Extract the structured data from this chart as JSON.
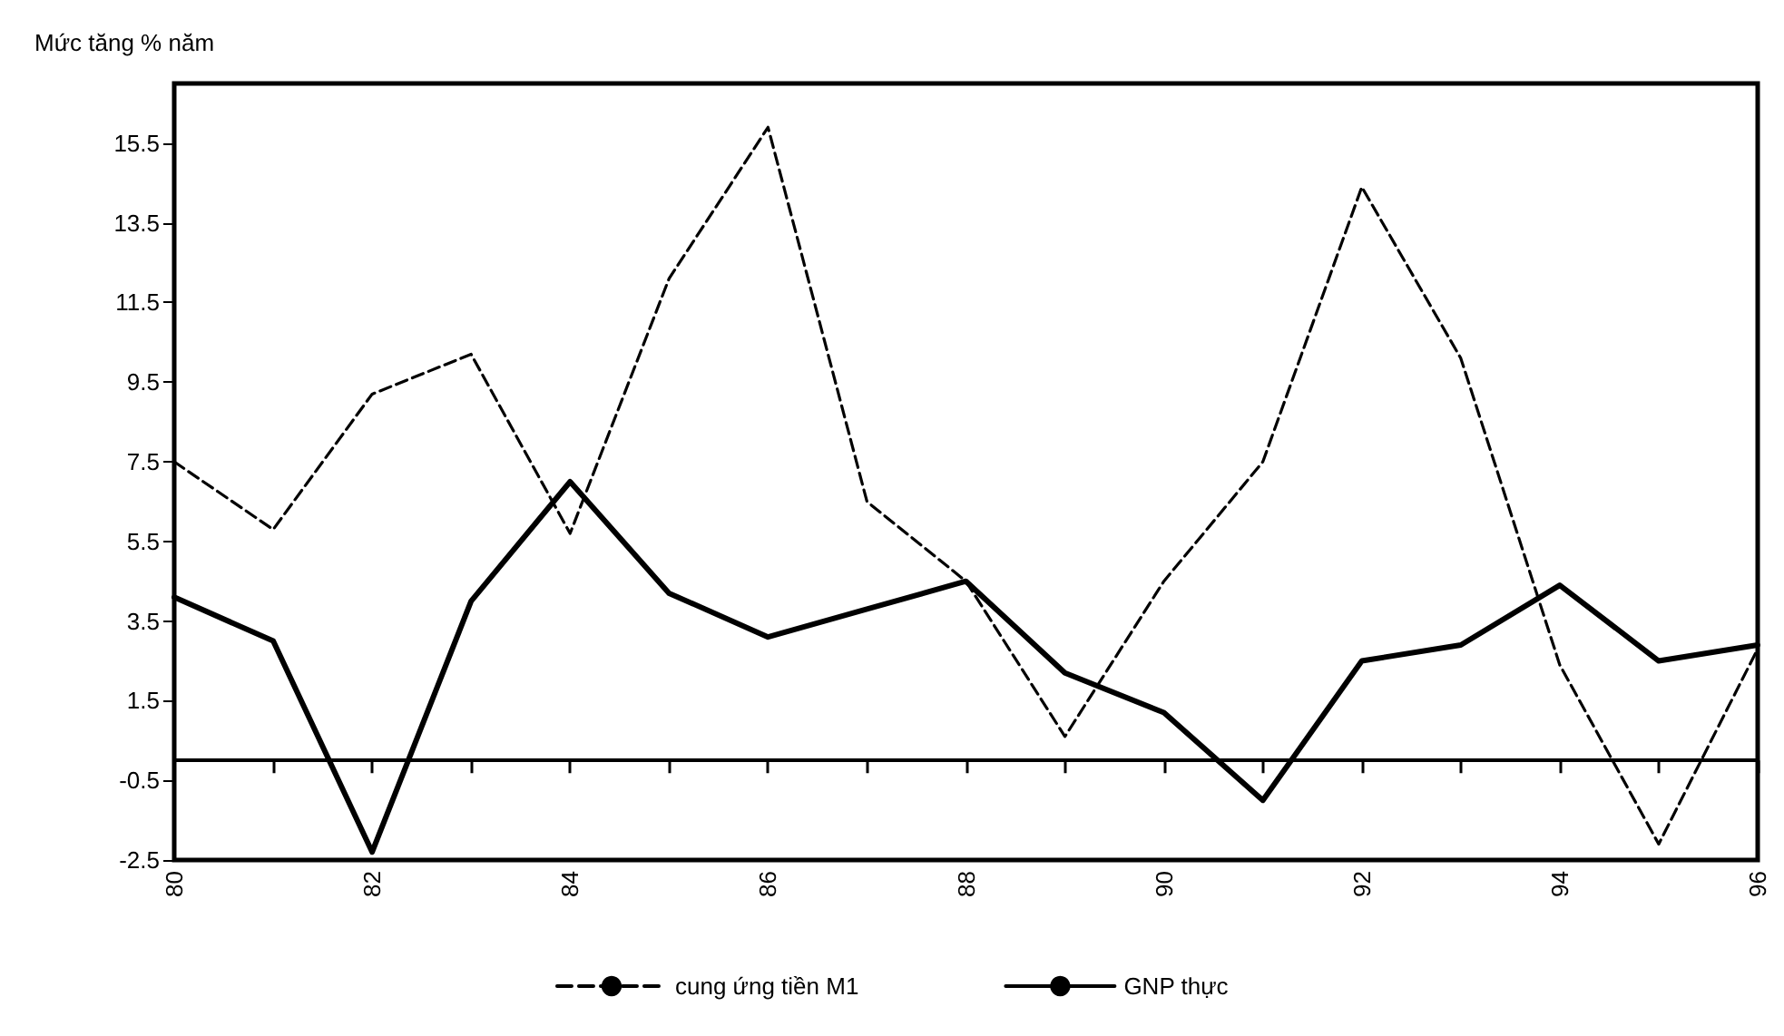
{
  "chart_data": {
    "type": "line",
    "ylabel": "Mức tăng % năm",
    "x": [
      80,
      81,
      82,
      83,
      84,
      85,
      86,
      87,
      88,
      89,
      90,
      91,
      92,
      93,
      94,
      95,
      96
    ],
    "series": [
      {
        "name": "cung ứng tiền M1",
        "color": "#000000",
        "line_style": "dashed",
        "values": [
          7.5,
          5.8,
          9.2,
          10.2,
          5.7,
          12.1,
          15.9,
          6.5,
          4.5,
          0.6,
          4.5,
          7.5,
          14.4,
          10.1,
          2.4,
          -2.1,
          2.8
        ]
      },
      {
        "name": "GNP thực",
        "color": "#000000",
        "line_style": "solid",
        "values": [
          4.1,
          3.0,
          -2.3,
          4.0,
          7.0,
          4.2,
          3.1,
          3.8,
          4.5,
          2.2,
          1.2,
          -1.0,
          2.5,
          2.9,
          4.4,
          2.5,
          2.9
        ]
      }
    ],
    "xlim": [
      80,
      96
    ],
    "xticks": [
      80,
      {
        "value": 81,
        "label": null
      },
      82,
      {
        "value": 83,
        "label": null
      },
      84,
      {
        "value": 85,
        "label": null
      },
      86,
      {
        "value": 87,
        "label": null
      },
      88,
      {
        "value": 89,
        "label": null
      },
      90,
      {
        "value": 91,
        "label": null
      },
      92,
      {
        "value": 93,
        "label": null
      },
      94,
      {
        "value": 95,
        "label": null
      },
      96
    ],
    "ylim": [
      -2.5,
      17
    ],
    "yticks": [
      -2.5,
      -0.5,
      1.5,
      3.5,
      5.5,
      7.5,
      9.5,
      11.5,
      13.5,
      15.5
    ],
    "grid": false,
    "legend": "bottom",
    "marker": "none"
  }
}
